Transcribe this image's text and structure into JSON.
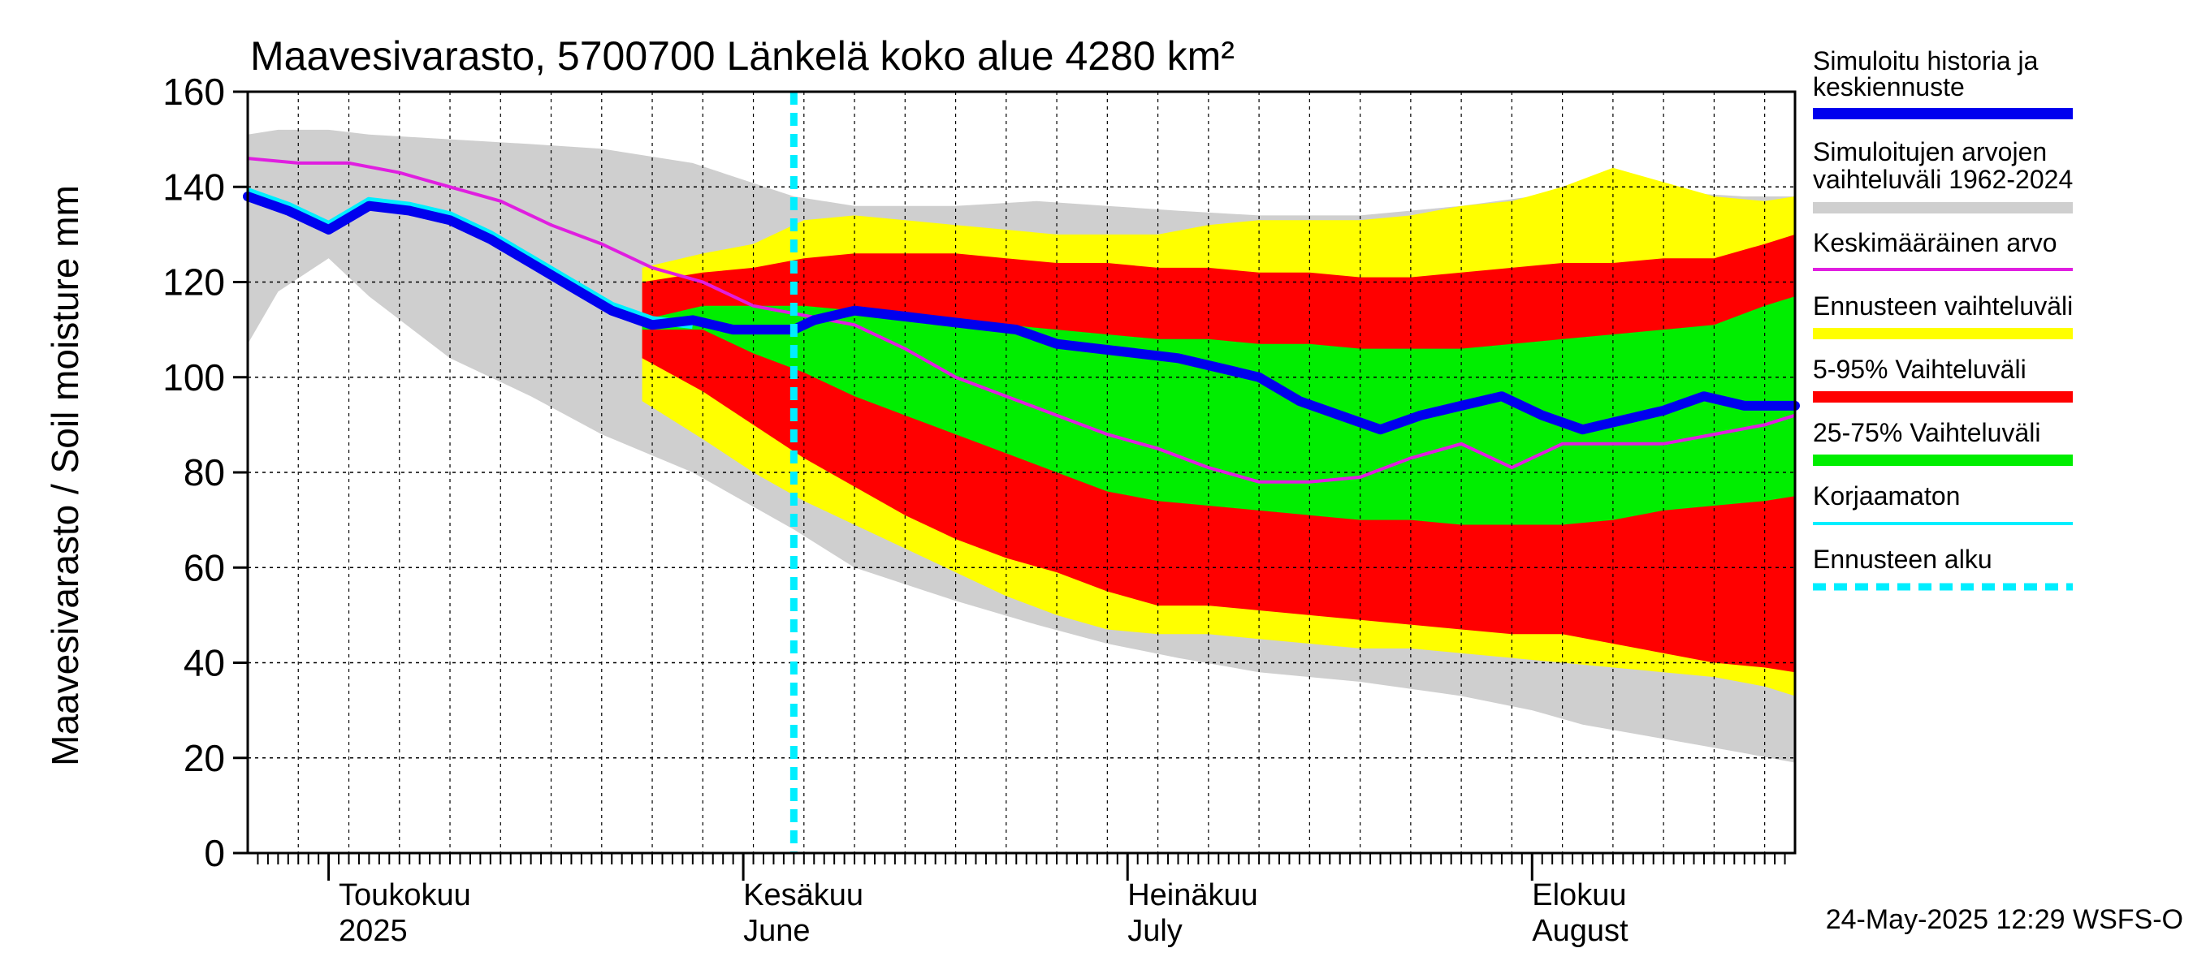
{
  "chart_data": {
    "type": "area",
    "title": "Maavesivarasto, 5700700 Länkelä koko alue 4280 km²",
    "ylabel": "Maavesivarasto / Soil moisture   mm",
    "ylim": [
      0,
      160
    ],
    "yticks": [
      0,
      20,
      40,
      60,
      80,
      100,
      120,
      140,
      160
    ],
    "x_unit": "days since 2025-04-01",
    "xlim": [
      0,
      153
    ],
    "forecast_start_day": 54,
    "month_labels": [
      {
        "fi": "Toukokuu",
        "en": "2025",
        "day": 9
      },
      {
        "fi": "Kesäkuu",
        "en": "June",
        "day": 49
      },
      {
        "fi": "Heinäkuu",
        "en": "July",
        "day": 87
      },
      {
        "fi": "Elokuu",
        "en": "August",
        "day": 127
      }
    ],
    "month_boundaries": [
      8,
      49,
      87,
      127
    ],
    "legend": [
      {
        "label": "Simuloitu historia ja keskiennuste",
        "color": "#0000ee",
        "style": "thick"
      },
      {
        "label": "Simuloitujen arvojen vaihteluväli 1962-2024",
        "color": "#cfcfcf",
        "style": "thick"
      },
      {
        "label": "Keskimääräinen arvo",
        "color": "#e01ee0",
        "style": "thin"
      },
      {
        "label": "Ennusteen vaihteluväli",
        "color": "#ffff00",
        "style": "thick"
      },
      {
        "label": "5-95% Vaihteluväli",
        "color": "#ff0000",
        "style": "thick"
      },
      {
        "label": "25-75% Vaihteluväli",
        "color": "#00ee00",
        "style": "thick"
      },
      {
        "label": "Korjaamaton",
        "color": "#00eeff",
        "style": "thin"
      },
      {
        "label": "Ennusteen alku",
        "color": "#00eeff",
        "style": "dashed"
      }
    ],
    "series": {
      "hist_range": {
        "x": [
          0,
          3,
          8,
          12,
          20,
          28,
          35,
          44,
          54,
          60,
          70,
          78,
          85,
          92,
          100,
          110,
          120,
          127,
          132,
          140,
          148,
          153
        ],
        "upper": [
          151,
          152,
          152,
          151,
          150,
          149,
          148,
          145,
          138,
          136,
          136,
          137,
          136,
          135,
          134,
          134,
          136,
          138,
          140,
          139,
          138,
          138
        ],
        "lower": [
          107,
          118,
          125,
          117,
          104,
          96,
          88,
          80,
          68,
          60,
          53,
          48,
          44,
          41,
          38,
          36,
          33,
          30,
          27,
          24,
          21,
          19
        ]
      },
      "forecast_range": {
        "x": [
          39,
          45,
          50,
          55,
          60,
          65,
          70,
          75,
          80,
          85,
          90,
          95,
          100,
          105,
          110,
          115,
          120,
          125,
          130,
          135,
          140,
          145,
          150,
          153
        ],
        "upper": [
          123,
          126,
          128,
          133,
          134,
          133,
          132,
          131,
          130,
          130,
          130,
          132,
          133,
          133,
          133,
          134,
          136,
          137,
          140,
          144,
          141,
          138,
          137,
          138
        ],
        "lower": [
          95,
          87,
          80,
          74,
          69,
          64,
          59,
          54,
          50,
          47,
          46,
          46,
          45,
          44,
          43,
          43,
          42,
          41,
          40,
          39,
          38,
          37,
          35,
          33
        ]
      },
      "p5_95": {
        "x": [
          39,
          45,
          50,
          55,
          60,
          65,
          70,
          75,
          80,
          85,
          90,
          95,
          100,
          105,
          110,
          115,
          120,
          125,
          130,
          135,
          140,
          145,
          150,
          153
        ],
        "upper": [
          120,
          122,
          123,
          125,
          126,
          126,
          126,
          125,
          124,
          124,
          123,
          123,
          122,
          122,
          121,
          121,
          122,
          123,
          124,
          124,
          125,
          125,
          128,
          130
        ],
        "lower": [
          104,
          97,
          90,
          83,
          77,
          71,
          66,
          62,
          59,
          55,
          52,
          52,
          51,
          50,
          49,
          48,
          47,
          46,
          46,
          44,
          42,
          40,
          39,
          38
        ]
      },
      "p25_75": {
        "x": [
          39,
          45,
          50,
          55,
          60,
          65,
          70,
          75,
          80,
          85,
          90,
          95,
          100,
          105,
          110,
          115,
          120,
          125,
          130,
          135,
          140,
          145,
          150,
          153
        ],
        "upper": [
          112,
          115,
          115,
          115,
          114,
          113,
          112,
          111,
          110,
          109,
          108,
          108,
          107,
          107,
          106,
          106,
          106,
          107,
          108,
          109,
          110,
          111,
          115,
          117
        ],
        "lower": [
          110,
          110,
          105,
          101,
          96,
          92,
          88,
          84,
          80,
          76,
          74,
          73,
          72,
          71,
          70,
          70,
          69,
          69,
          69,
          70,
          72,
          73,
          74,
          75
        ]
      },
      "mean": {
        "x": [
          0,
          5,
          10,
          15,
          20,
          25,
          30,
          35,
          40,
          45,
          50,
          55,
          60,
          65,
          70,
          75,
          80,
          85,
          90,
          95,
          100,
          105,
          110,
          115,
          120,
          125,
          130,
          135,
          140,
          145,
          150,
          153
        ],
        "values": [
          146,
          145,
          145,
          143,
          140,
          137,
          132,
          128,
          123,
          120,
          115,
          113,
          111,
          106,
          100,
          96,
          92,
          88,
          85,
          81,
          78,
          78,
          79,
          83,
          86,
          81,
          86,
          86,
          86,
          88,
          90,
          92
        ]
      },
      "simulated": {
        "x": [
          0,
          4,
          8,
          12,
          16,
          20,
          24,
          28,
          32,
          36,
          40,
          44,
          48,
          52,
          54,
          56,
          60,
          64,
          68,
          72,
          76,
          80,
          84,
          88,
          92,
          96,
          100,
          104,
          108,
          112,
          116,
          120,
          124,
          128,
          132,
          136,
          140,
          144,
          148,
          153
        ],
        "values": [
          138,
          135,
          131,
          136,
          135,
          133,
          129,
          124,
          119,
          114,
          111,
          112,
          110,
          110,
          110,
          112,
          114,
          113,
          112,
          111,
          110,
          107,
          106,
          105,
          104,
          102,
          100,
          95,
          92,
          89,
          92,
          94,
          96,
          92,
          89,
          91,
          93,
          96,
          94,
          94
        ]
      },
      "uncorrected": {
        "x": [
          0,
          4,
          8,
          12,
          16,
          20,
          24,
          28,
          32,
          36,
          40,
          44
        ],
        "values": [
          139,
          136,
          132,
          137,
          136,
          134,
          130,
          125,
          120,
          115,
          112,
          111
        ]
      }
    },
    "timestamp": "24-May-2025 12:29 WSFS-O"
  }
}
